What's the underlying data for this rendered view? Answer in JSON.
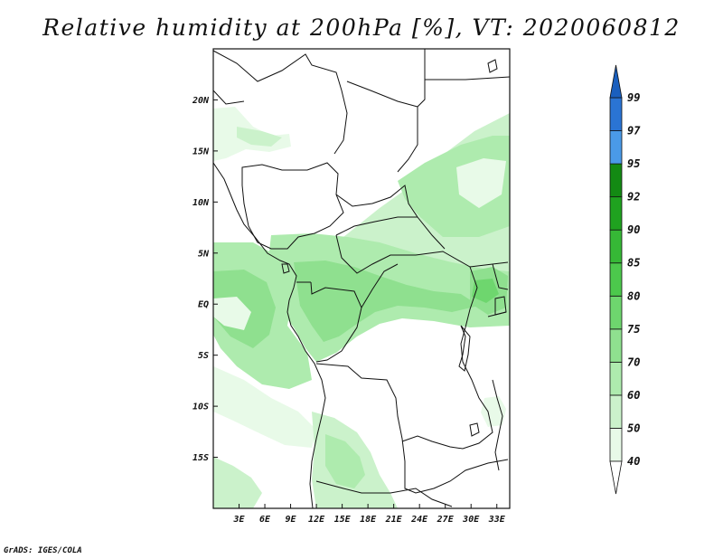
{
  "title": "Relative humidity at 200hPa [%], VT: 2020060812",
  "credit": "GrADS: IGES/COLA",
  "map": {
    "lon_range": [
      0,
      34.5
    ],
    "lat_range": [
      -20,
      25
    ],
    "lon_ticks": [
      {
        "lon": 3,
        "label": "3E"
      },
      {
        "lon": 6,
        "label": "6E"
      },
      {
        "lon": 9,
        "label": "9E"
      },
      {
        "lon": 12,
        "label": "12E"
      },
      {
        "lon": 15,
        "label": "15E"
      },
      {
        "lon": 18,
        "label": "18E"
      },
      {
        "lon": 21,
        "label": "21E"
      },
      {
        "lon": 24,
        "label": "24E"
      },
      {
        "lon": 27,
        "label": "27E"
      },
      {
        "lon": 30,
        "label": "30E"
      },
      {
        "lon": 33,
        "label": "33E"
      }
    ],
    "lat_ticks": [
      {
        "lat": 20,
        "label": "20N"
      },
      {
        "lat": 15,
        "label": "15N"
      },
      {
        "lat": 10,
        "label": "10N"
      },
      {
        "lat": 5,
        "label": "5N"
      },
      {
        "lat": 0,
        "label": "EQ"
      },
      {
        "lat": -5,
        "label": "5S"
      },
      {
        "lat": -10,
        "label": "10S"
      },
      {
        "lat": -15,
        "label": "15S"
      }
    ]
  },
  "colorbar": {
    "levels": [
      {
        "label": "40",
        "color": "#ffffff"
      },
      {
        "label": "50",
        "color": "#e8fae8"
      },
      {
        "label": "60",
        "color": "#cbf2cb"
      },
      {
        "label": "70",
        "color": "#aeebae"
      },
      {
        "label": "75",
        "color": "#8fe08f"
      },
      {
        "label": "80",
        "color": "#6ed66e"
      },
      {
        "label": "85",
        "color": "#4cc84c"
      },
      {
        "label": "90",
        "color": "#36b836"
      },
      {
        "label": "92",
        "color": "#1fa21f"
      },
      {
        "label": "95",
        "color": "#138a13"
      },
      {
        "label": "97",
        "color": "#4a9ae8"
      },
      {
        "label": "99",
        "color": "#2a74d4"
      }
    ],
    "top_color": "#1a5fbe"
  }
}
